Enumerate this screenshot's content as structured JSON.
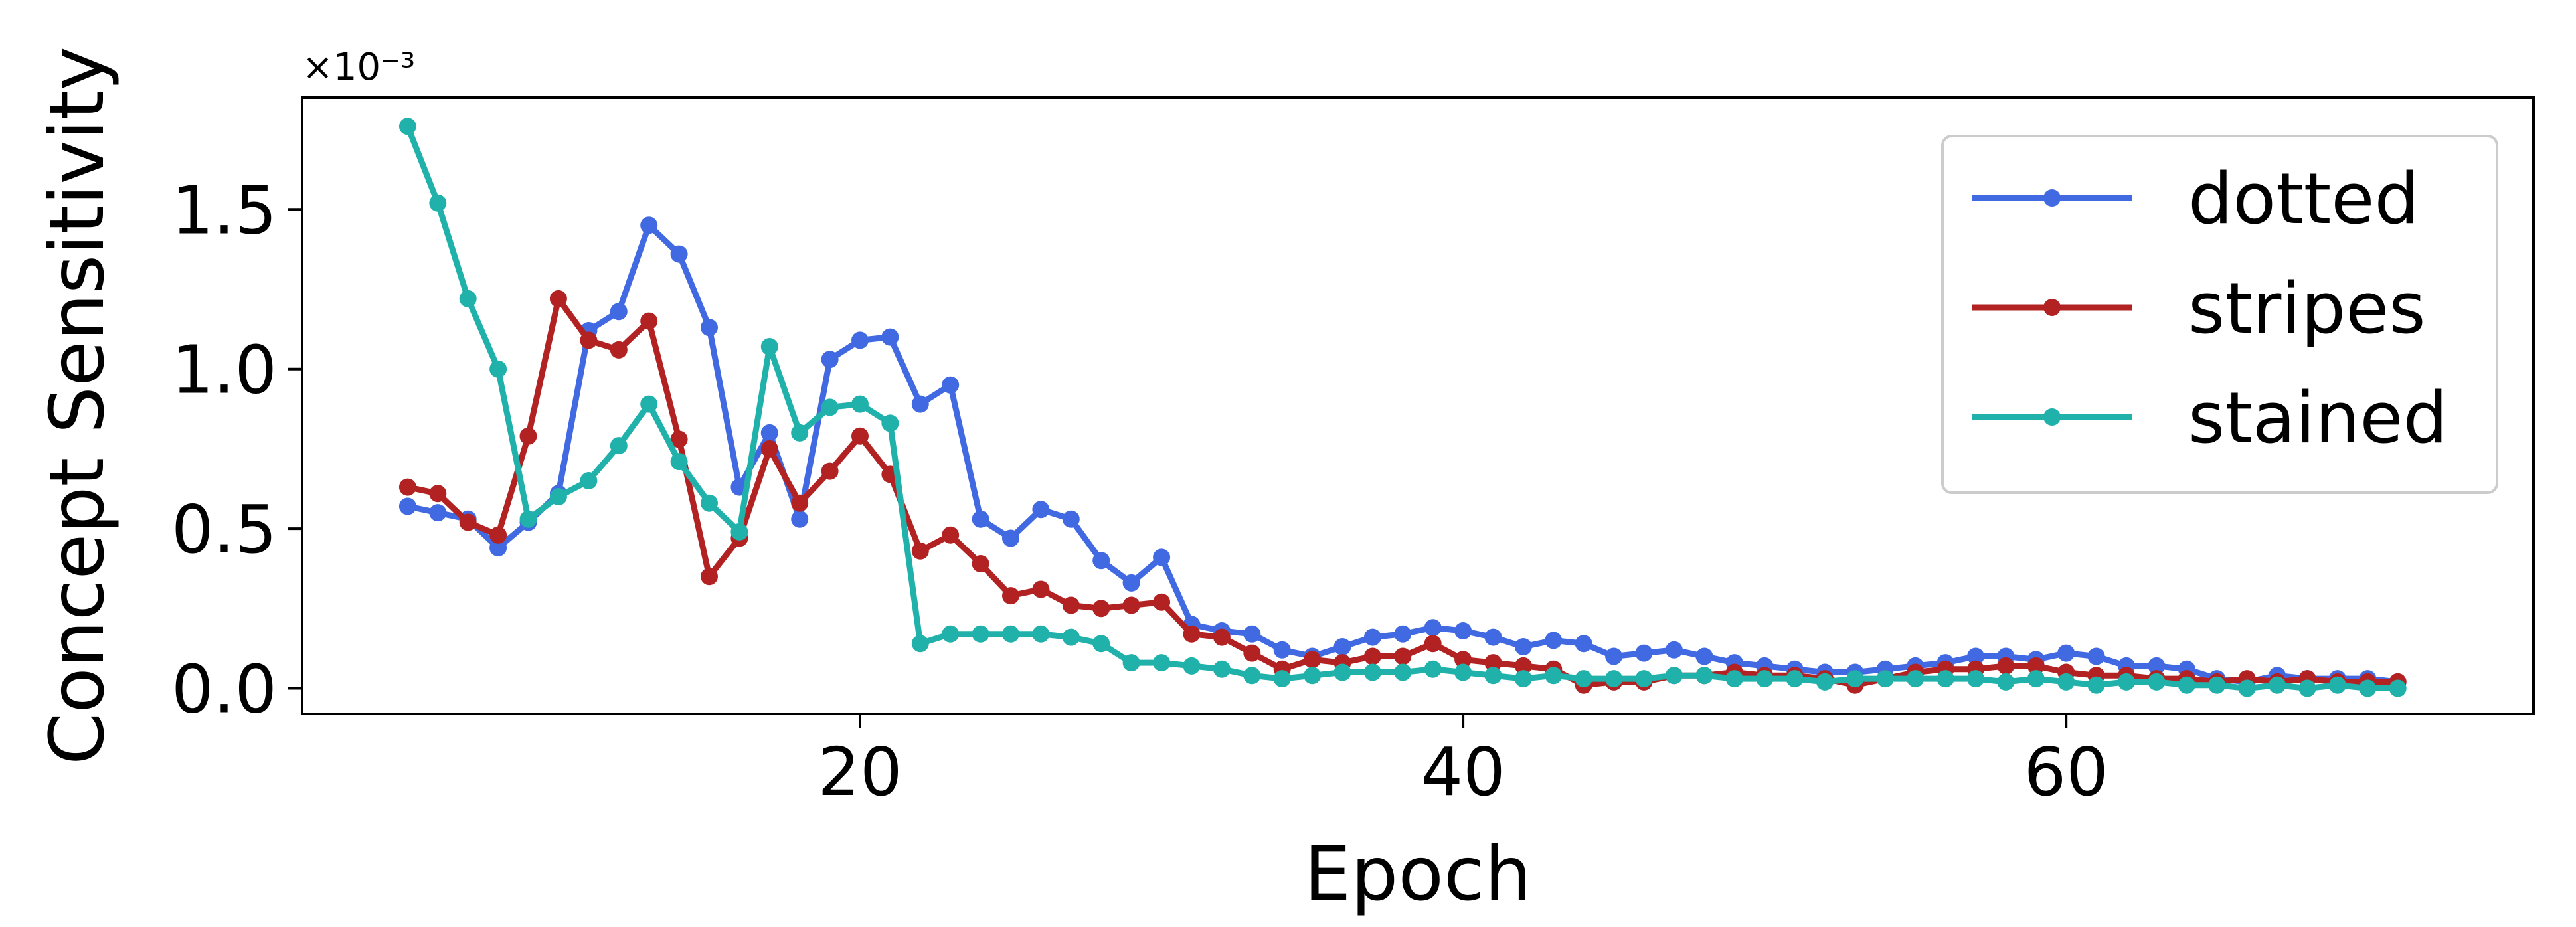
{
  "chart_data": {
    "type": "line",
    "title": "",
    "xlabel": "Epoch",
    "ylabel": "Concept Sensitivity",
    "y_multiplier": "×10⁻³",
    "xlim": [
      1.5,
      75.5
    ],
    "ylim": [
      -0.08,
      1.85
    ],
    "xticks": [
      20,
      40,
      60
    ],
    "yticks": [
      0.0,
      0.5,
      1.0,
      1.5
    ],
    "ytick_labels": [
      "0.0",
      "0.5",
      "1.0",
      "1.5"
    ],
    "grid": false,
    "legend_position": "top-right",
    "x": [
      5,
      6,
      7,
      8,
      9,
      10,
      11,
      12,
      13,
      14,
      15,
      16,
      17,
      18,
      19,
      20,
      21,
      22,
      23,
      24,
      25,
      26,
      27,
      28,
      29,
      30,
      31,
      32,
      33,
      34,
      35,
      36,
      37,
      38,
      39,
      40,
      41,
      42,
      43,
      44,
      45,
      46,
      47,
      48,
      49,
      50,
      51,
      52,
      53,
      54,
      55,
      56,
      57,
      58,
      59,
      60,
      61,
      62,
      63,
      64,
      65,
      66,
      67,
      68,
      69,
      70,
      71
    ],
    "series": [
      {
        "name": "dotted",
        "color": "#4169E1",
        "values": [
          0.57,
          0.55,
          0.53,
          0.44,
          0.52,
          0.61,
          1.12,
          1.18,
          1.45,
          1.36,
          1.13,
          0.63,
          0.8,
          0.53,
          1.03,
          1.09,
          1.1,
          0.89,
          0.95,
          0.53,
          0.47,
          0.56,
          0.53,
          0.4,
          0.33,
          0.41,
          0.2,
          0.18,
          0.17,
          0.12,
          0.1,
          0.13,
          0.16,
          0.17,
          0.19,
          0.18,
          0.16,
          0.13,
          0.15,
          0.14,
          0.1,
          0.11,
          0.12,
          0.1,
          0.08,
          0.07,
          0.06,
          0.05,
          0.05,
          0.06,
          0.07,
          0.08,
          0.1,
          0.1,
          0.09,
          0.11,
          0.1,
          0.07,
          0.07,
          0.06,
          0.03,
          0.02,
          0.04,
          0.03,
          0.03,
          0.03,
          0.02
        ]
      },
      {
        "name": "stripes",
        "color": "#B22222",
        "values": [
          0.63,
          0.61,
          0.52,
          0.48,
          0.79,
          1.22,
          1.09,
          1.06,
          1.15,
          0.78,
          0.35,
          0.47,
          0.75,
          0.58,
          0.68,
          0.79,
          0.67,
          0.43,
          0.48,
          0.39,
          0.29,
          0.31,
          0.26,
          0.25,
          0.26,
          0.27,
          0.17,
          0.16,
          0.11,
          0.06,
          0.09,
          0.08,
          0.1,
          0.1,
          0.14,
          0.09,
          0.08,
          0.07,
          0.06,
          0.01,
          0.02,
          0.02,
          0.04,
          0.04,
          0.05,
          0.04,
          0.04,
          0.03,
          0.01,
          0.03,
          0.05,
          0.06,
          0.06,
          0.07,
          0.07,
          0.05,
          0.04,
          0.04,
          0.03,
          0.03,
          0.02,
          0.03,
          0.02,
          0.03,
          0.02,
          0.02,
          0.02
        ]
      },
      {
        "name": "stained",
        "color": "#20B2AA",
        "values": [
          1.76,
          1.52,
          1.22,
          1.0,
          0.53,
          0.6,
          0.65,
          0.76,
          0.89,
          0.71,
          0.58,
          0.49,
          1.07,
          0.8,
          0.88,
          0.89,
          0.83,
          0.14,
          0.17,
          0.17,
          0.17,
          0.17,
          0.16,
          0.14,
          0.08,
          0.08,
          0.07,
          0.06,
          0.04,
          0.03,
          0.04,
          0.05,
          0.05,
          0.05,
          0.06,
          0.05,
          0.04,
          0.03,
          0.04,
          0.03,
          0.03,
          0.03,
          0.04,
          0.04,
          0.03,
          0.03,
          0.03,
          0.02,
          0.03,
          0.03,
          0.03,
          0.03,
          0.03,
          0.02,
          0.03,
          0.02,
          0.01,
          0.02,
          0.02,
          0.01,
          0.01,
          0.0,
          0.01,
          0.0,
          0.01,
          0.0,
          0.0
        ]
      }
    ]
  }
}
